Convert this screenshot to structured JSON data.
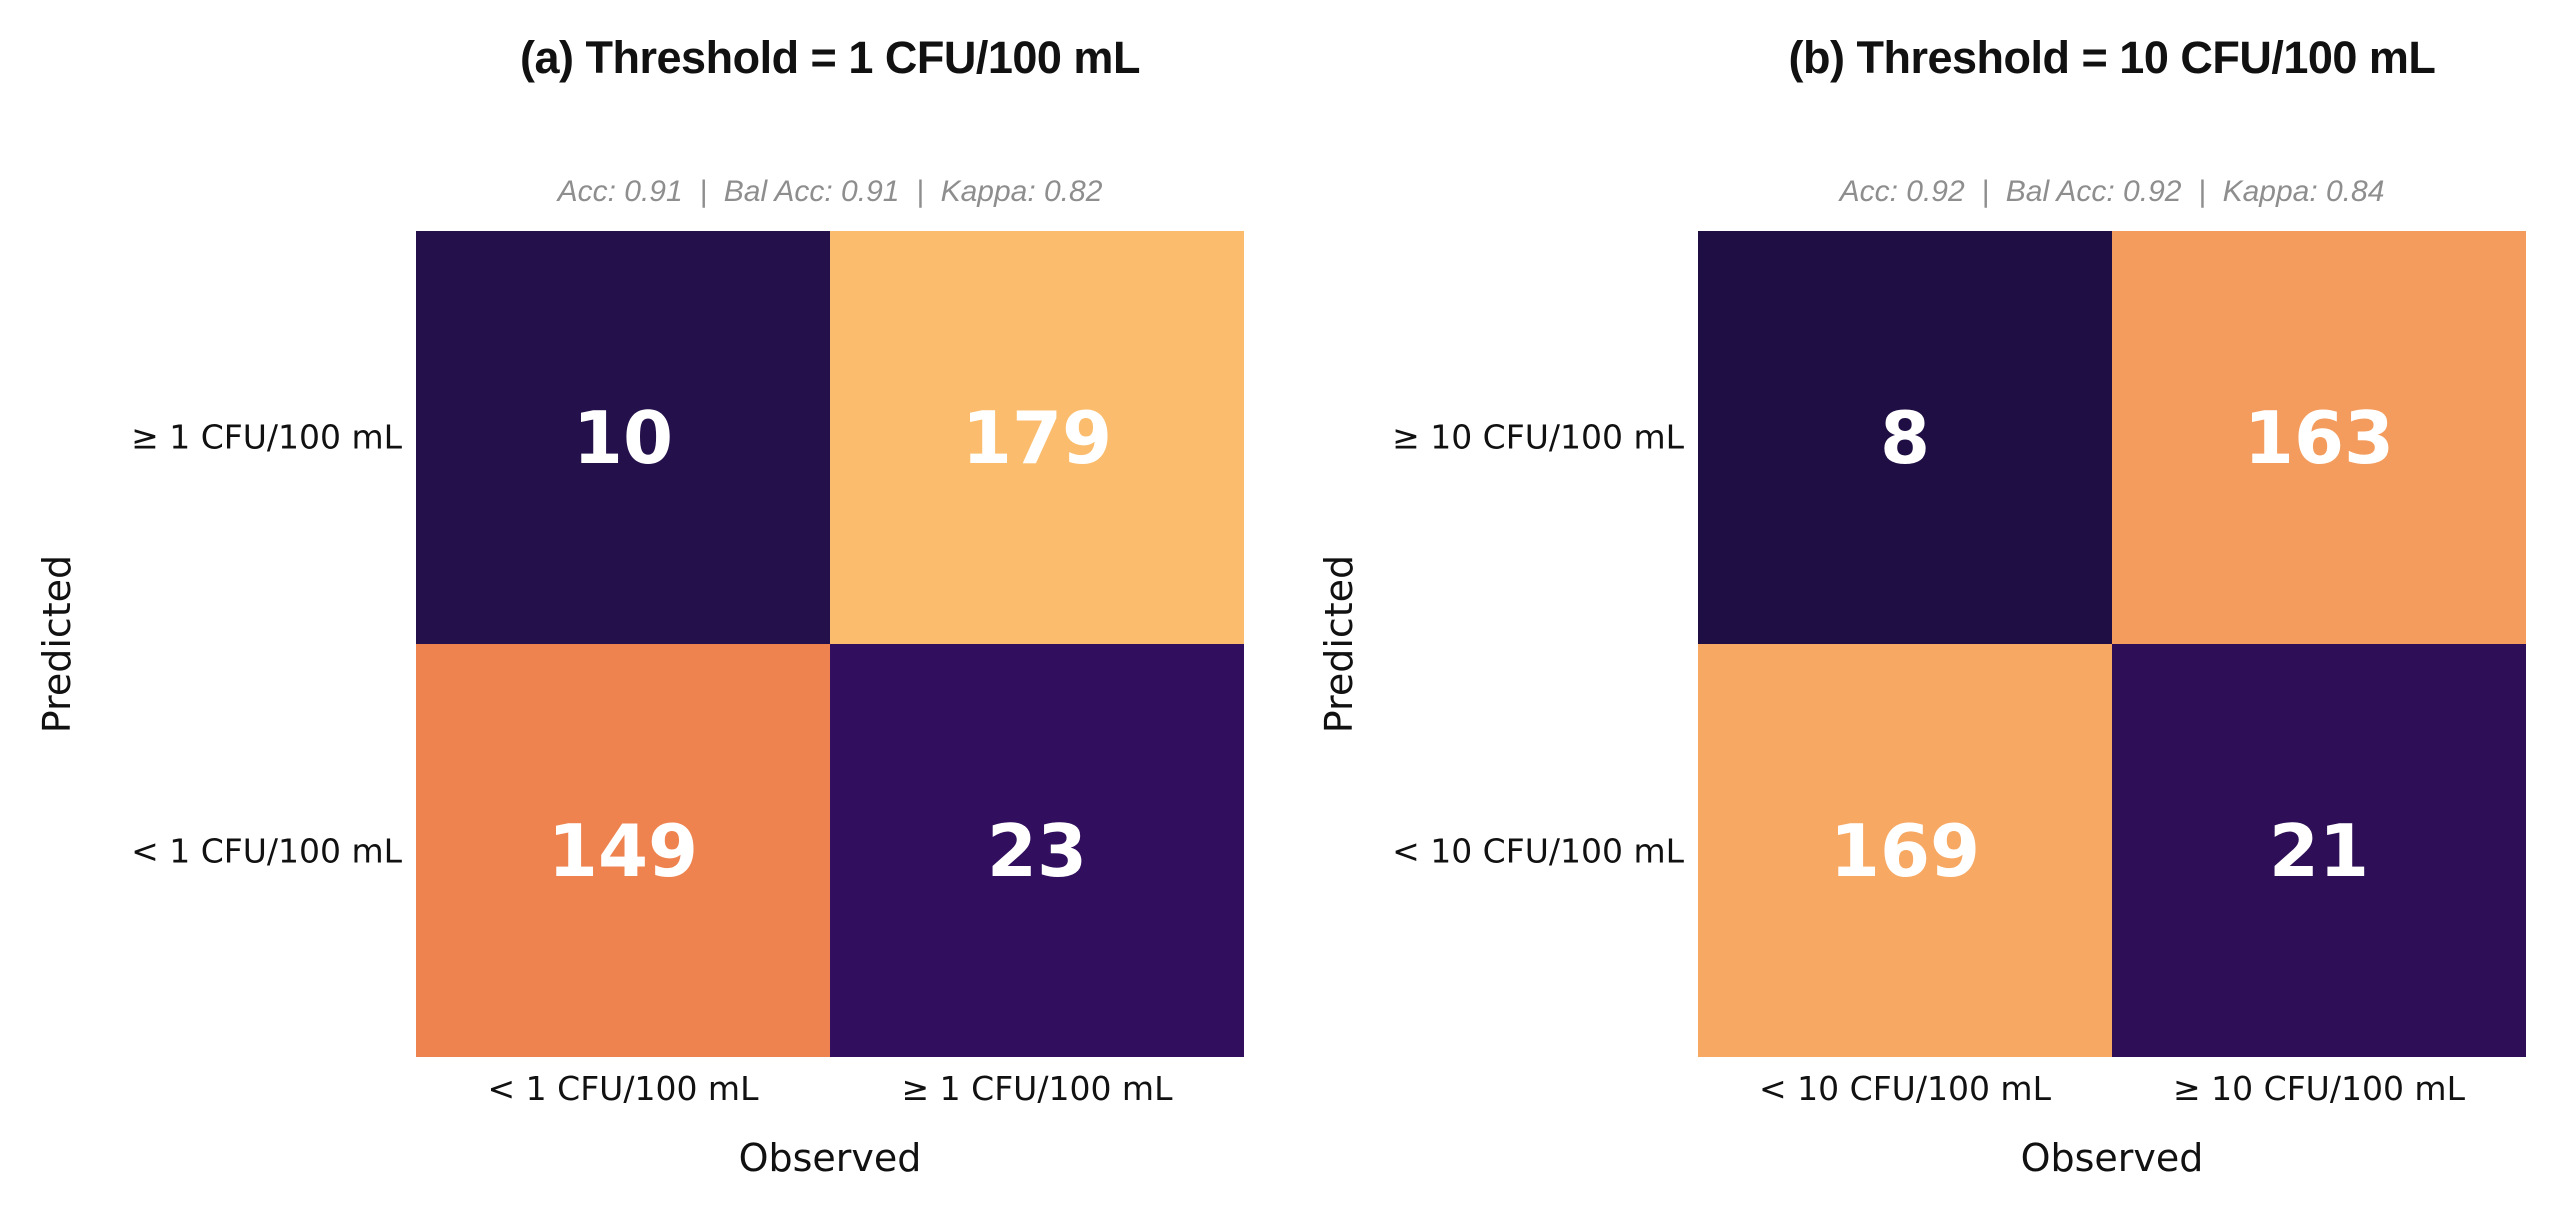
{
  "figure": {
    "background": "#ffffff",
    "title_color": "#111111",
    "stats_color": "#8e8e8e",
    "tick_color": "#111111",
    "value_color": "#ffffff"
  },
  "chart_data": [
    {
      "type": "heatmap",
      "panel": "a",
      "title": "(a) Threshold = 1 CFU/100 mL",
      "stats": "Acc: 0.91  |  Bal Acc: 0.91  |  Kappa: 0.82",
      "metrics": {
        "acc": 0.91,
        "bal_acc": 0.91,
        "kappa": 0.82
      },
      "xlabel": "Observed",
      "ylabel": "Predicted",
      "x_categories": [
        "< 1 CFU/100 mL",
        "≥ 1 CFU/100 mL"
      ],
      "y_categories": [
        "≥ 1 CFU/100 mL",
        "< 1 CFU/100 mL"
      ],
      "values": [
        [
          10,
          179
        ],
        [
          149,
          23
        ]
      ],
      "cell_colors": [
        [
          "#24104b",
          "#fbbd6d"
        ],
        [
          "#ee8350",
          "#310e5e"
        ]
      ],
      "legend": "none",
      "grid": false
    },
    {
      "type": "heatmap",
      "panel": "b",
      "title": "(b) Threshold = 10 CFU/100 mL",
      "stats": "Acc: 0.92  |  Bal Acc: 0.92  |  Kappa: 0.84",
      "metrics": {
        "acc": 0.92,
        "bal_acc": 0.92,
        "kappa": 0.84
      },
      "xlabel": "Observed",
      "ylabel": "Predicted",
      "x_categories": [
        "< 10 CFU/100 mL",
        "≥ 10 CFU/100 mL"
      ],
      "y_categories": [
        "≥ 10 CFU/100 mL",
        "< 10 CFU/100 mL"
      ],
      "values": [
        [
          8,
          163
        ],
        [
          169,
          21
        ]
      ],
      "cell_colors": [
        [
          "#1f0e43",
          "#f49c5d"
        ],
        [
          "#f7a863",
          "#2e0e57"
        ]
      ],
      "legend": "none",
      "grid": false
    }
  ]
}
